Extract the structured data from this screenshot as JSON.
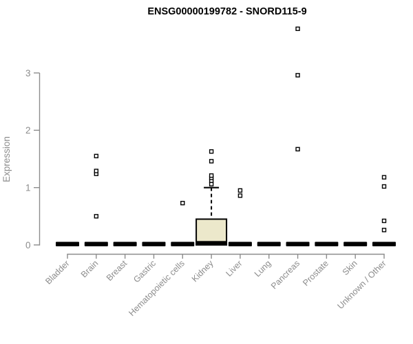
{
  "chart_data": {
    "type": "boxplot",
    "title": "ENSG00000199782 - SNORD115-9",
    "ylabel": "Expression",
    "xlabel": "",
    "yticks": [
      0,
      1,
      2,
      3
    ],
    "ylim": [
      0,
      3.85
    ],
    "grid": false,
    "legend_position": "none",
    "categories": [
      "Bladder",
      "Brain",
      "Breast",
      "Gastric",
      "Hematopoietic cells",
      "Kidney",
      "Liver",
      "Lung",
      "Pancreas",
      "Prostate",
      "Skin",
      "Unknown / Other"
    ],
    "series": [
      {
        "category": "Bladder",
        "q1": 0,
        "median": 0,
        "q3": 0,
        "whisker_low": 0,
        "whisker_high": 0,
        "outliers": []
      },
      {
        "category": "Brain",
        "q1": 0,
        "median": 0,
        "q3": 0,
        "whisker_low": 0,
        "whisker_high": 0,
        "outliers": [
          0.5,
          1.24,
          1.29,
          1.55
        ]
      },
      {
        "category": "Breast",
        "q1": 0,
        "median": 0,
        "q3": 0,
        "whisker_low": 0,
        "whisker_high": 0,
        "outliers": []
      },
      {
        "category": "Gastric",
        "q1": 0,
        "median": 0,
        "q3": 0,
        "whisker_low": 0,
        "whisker_high": 0,
        "outliers": []
      },
      {
        "category": "Hematopoietic cells",
        "q1": 0,
        "median": 0,
        "q3": 0,
        "whisker_low": 0,
        "whisker_high": 0,
        "outliers": [
          0.73
        ]
      },
      {
        "category": "Kidney",
        "q1": 0,
        "median": 0.02,
        "q3": 0.45,
        "whisker_low": 0,
        "whisker_high": 1.0,
        "outliers": [
          1.06,
          1.12,
          1.17,
          1.21,
          1.46,
          1.63
        ]
      },
      {
        "category": "Liver",
        "q1": 0,
        "median": 0,
        "q3": 0,
        "whisker_low": 0,
        "whisker_high": 0,
        "outliers": [
          0.86,
          0.95
        ]
      },
      {
        "category": "Lung",
        "q1": 0,
        "median": 0,
        "q3": 0,
        "whisker_low": 0,
        "whisker_high": 0,
        "outliers": []
      },
      {
        "category": "Pancreas",
        "q1": 0,
        "median": 0,
        "q3": 0,
        "whisker_low": 0,
        "whisker_high": 0,
        "outliers": [
          1.67,
          2.96,
          3.77
        ]
      },
      {
        "category": "Prostate",
        "q1": 0,
        "median": 0,
        "q3": 0,
        "whisker_low": 0,
        "whisker_high": 0,
        "outliers": []
      },
      {
        "category": "Skin",
        "q1": 0,
        "median": 0,
        "q3": 0,
        "whisker_low": 0,
        "whisker_high": 0,
        "outliers": []
      },
      {
        "category": "Unknown / Other",
        "q1": 0,
        "median": 0,
        "q3": 0,
        "whisker_low": 0,
        "whisker_high": 0,
        "outliers": [
          0.26,
          0.42,
          1.02,
          1.18
        ]
      }
    ],
    "colors": {
      "box_fill": "#ECE8CB",
      "data": "#000000",
      "axis": "#8C8C8C",
      "outlier_fill": "#FFFFFF",
      "background": "#FFFFFF"
    }
  }
}
